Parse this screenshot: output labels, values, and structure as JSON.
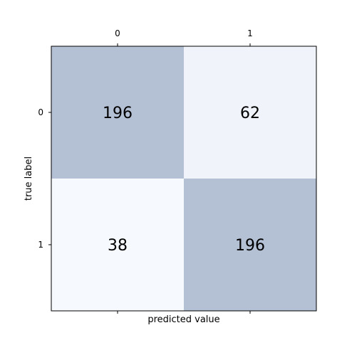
{
  "chart_data": {
    "type": "heatmap",
    "x_tick_labels": [
      "0",
      "1"
    ],
    "y_tick_labels": [
      "0",
      "1"
    ],
    "values": [
      [
        196,
        62
      ],
      [
        38,
        196
      ]
    ],
    "xlabel": "predicted value",
    "ylabel": "true label",
    "x_ticks_position": "top",
    "bottom_tick_marks": true,
    "grid": false,
    "colors": {
      "high": "#b4c0d4",
      "low": "#f6f9fd",
      "mid": "#f0f4fa",
      "frame": "#000000"
    }
  }
}
